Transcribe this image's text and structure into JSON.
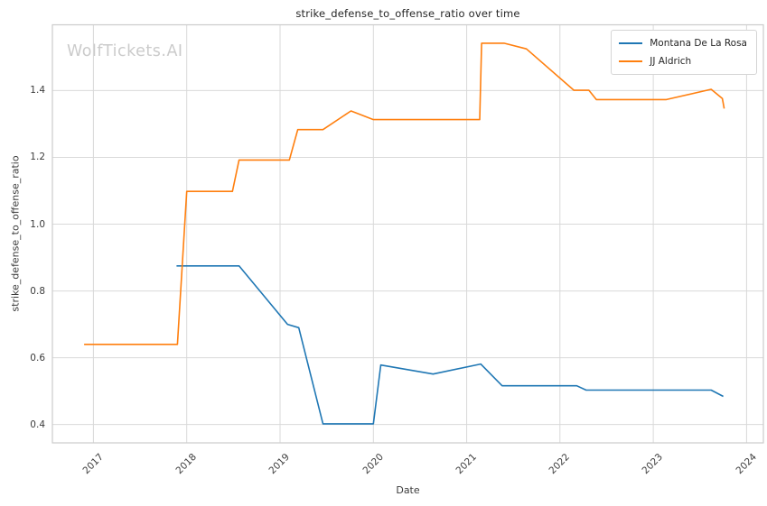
{
  "chart_data": {
    "type": "line",
    "title": "strike_defense_to_offense_ratio over time",
    "xlabel": "Date",
    "ylabel": "strike_defense_to_offense_ratio",
    "watermark": "WolfTickets.AI",
    "grid": true,
    "legend_position": "upper right",
    "x_ticks": [
      "2017",
      "2018",
      "2019",
      "2020",
      "2021",
      "2022",
      "2023",
      "2024"
    ],
    "x_tick_years": [
      2017,
      2018,
      2019,
      2020,
      2021,
      2022,
      2023,
      2024
    ],
    "y_ticks": [
      "0.4",
      "0.6",
      "0.8",
      "1.0",
      "1.2",
      "1.4"
    ],
    "y_tick_values": [
      0.4,
      0.6,
      0.8,
      1.0,
      1.2,
      1.4
    ],
    "xlim": [
      2016.56,
      2024.18
    ],
    "ylim": [
      0.345,
      1.597
    ],
    "colors": {
      "grid": "#d9d9d9",
      "spine": "#cccccc",
      "title": "#262626",
      "tick_label": "#3b3b3b",
      "watermark": "#cbcbcb",
      "background": "#ffffff"
    },
    "series": [
      {
        "name": "Montana De La Rosa",
        "color": "#1f77b4",
        "x": [
          2017.89,
          2018.56,
          2019.08,
          2019.2,
          2019.46,
          2020.0,
          2020.08,
          2020.64,
          2021.15,
          2021.38,
          2022.18,
          2022.28,
          2023.62,
          2023.75
        ],
        "y": [
          0.875,
          0.875,
          0.7,
          0.69,
          0.402,
          0.402,
          0.578,
          0.551,
          0.581,
          0.516,
          0.516,
          0.503,
          0.503,
          0.484
        ]
      },
      {
        "name": "JJ Aldrich",
        "color": "#ff7f0e",
        "x": [
          2016.9,
          2017.9,
          2018.0,
          2018.49,
          2018.56,
          2019.1,
          2019.19,
          2019.46,
          2019.76,
          2020.0,
          2021.14,
          2021.16,
          2021.4,
          2021.64,
          2022.15,
          2022.31,
          2022.39,
          2023.14,
          2023.62,
          2023.74,
          2023.76
        ],
        "y": [
          0.64,
          0.64,
          1.098,
          1.098,
          1.192,
          1.192,
          1.283,
          1.283,
          1.339,
          1.313,
          1.313,
          1.542,
          1.542,
          1.525,
          1.401,
          1.401,
          1.373,
          1.373,
          1.404,
          1.376,
          1.346
        ]
      }
    ]
  }
}
